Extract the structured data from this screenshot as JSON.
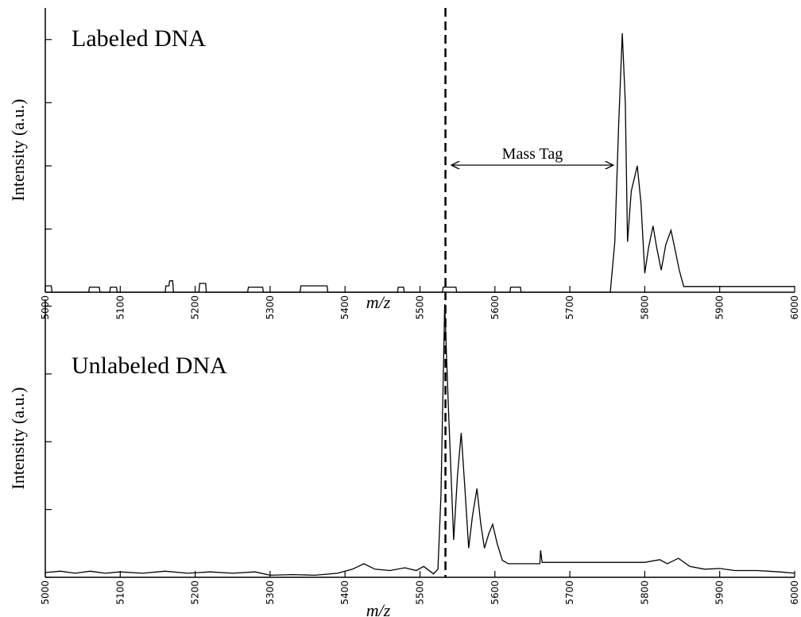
{
  "chart_data": [
    {
      "type": "line",
      "title": "Labeled DNA",
      "ylabel": "Intensity (a.u.)",
      "xlabel": "m/z",
      "xlim": [
        5000,
        6000
      ],
      "xticks": [
        5000,
        5100,
        5200,
        5300,
        5400,
        5500,
        5600,
        5700,
        5800,
        5900,
        6000
      ],
      "ylim": [
        0,
        4.5
      ],
      "yticks": [
        0,
        1,
        2,
        3,
        4
      ],
      "reference_x": 5534,
      "annotation": {
        "text": "Mass Tag",
        "x_range": [
          5542,
          5758
        ]
      },
      "series": [
        {
          "color": "#000000",
          "x": [
            5000,
            5008,
            5009,
            5058,
            5059,
            5072,
            5073,
            5086,
            5087,
            5095,
            5096,
            5160,
            5161,
            5165,
            5166,
            5170,
            5171,
            5205,
            5206,
            5214,
            5215,
            5270,
            5271,
            5290,
            5291,
            5340,
            5341,
            5376,
            5377,
            5470,
            5471,
            5478,
            5479,
            5530,
            5531,
            5548,
            5549,
            5620,
            5621,
            5634,
            5635,
            5754,
            5760,
            5765,
            5770,
            5774,
            5777,
            5782,
            5786,
            5790,
            5795,
            5800,
            5805,
            5811,
            5816,
            5822,
            5828,
            5835,
            5840,
            5846,
            5852,
            6000
          ],
          "values": [
            0.1,
            0.1,
            0,
            0,
            0.08,
            0.08,
            0,
            0,
            0.08,
            0.08,
            0,
            0,
            0.1,
            0.1,
            0.18,
            0.18,
            0,
            0,
            0.14,
            0.14,
            0,
            0,
            0.08,
            0.08,
            0,
            0,
            0.1,
            0.1,
            0,
            0,
            0.08,
            0.08,
            0,
            0,
            0.08,
            0.08,
            0,
            0,
            0.08,
            0.08,
            0,
            0,
            0.8,
            2.6,
            4.1,
            3.0,
            0.8,
            1.6,
            1.8,
            2.0,
            1.4,
            0.3,
            0.7,
            1.05,
            0.7,
            0.35,
            0.75,
            0.98,
            0.7,
            0.35,
            0.09,
            0.09
          ]
        }
      ]
    },
    {
      "type": "line",
      "title": "Unlabeled DNA",
      "ylabel": "Intensity (a.u.)",
      "xlabel": "m/z",
      "xlim": [
        5000,
        6000
      ],
      "xticks": [
        5000,
        5100,
        5200,
        5300,
        5400,
        5500,
        5600,
        5700,
        5800,
        5900,
        6000
      ],
      "ylim": [
        0,
        4.1
      ],
      "yticks": [
        0,
        1,
        2,
        3,
        4
      ],
      "series": [
        {
          "color": "#000000",
          "x": [
            5000,
            5020,
            5040,
            5060,
            5080,
            5100,
            5130,
            5160,
            5190,
            5220,
            5250,
            5280,
            5300,
            5330,
            5360,
            5390,
            5410,
            5425,
            5440,
            5460,
            5480,
            5495,
            5505,
            5518,
            5524,
            5528,
            5533,
            5538,
            5545,
            5550,
            5555,
            5560,
            5565,
            5570,
            5576,
            5581,
            5586,
            5592,
            5597,
            5603,
            5610,
            5618,
            5660,
            5661,
            5663,
            5800,
            5820,
            5830,
            5845,
            5860,
            5880,
            5900,
            5920,
            5950,
            5980,
            6000
          ],
          "values": [
            0.07,
            0.09,
            0.06,
            0.09,
            0.06,
            0.08,
            0.06,
            0.09,
            0.06,
            0.08,
            0.06,
            0.08,
            0.03,
            0.04,
            0.03,
            0.06,
            0.12,
            0.2,
            0.12,
            0.1,
            0.14,
            0.1,
            0.16,
            0.05,
            0.12,
            1.2,
            4.03,
            2.5,
            0.55,
            1.5,
            2.13,
            1.3,
            0.43,
            0.9,
            1.31,
            0.8,
            0.43,
            0.65,
            0.78,
            0.5,
            0.25,
            0.2,
            0.2,
            0.4,
            0.22,
            0.22,
            0.26,
            0.2,
            0.28,
            0.16,
            0.12,
            0.13,
            0.1,
            0.1,
            0.08,
            0.06
          ]
        }
      ]
    }
  ]
}
